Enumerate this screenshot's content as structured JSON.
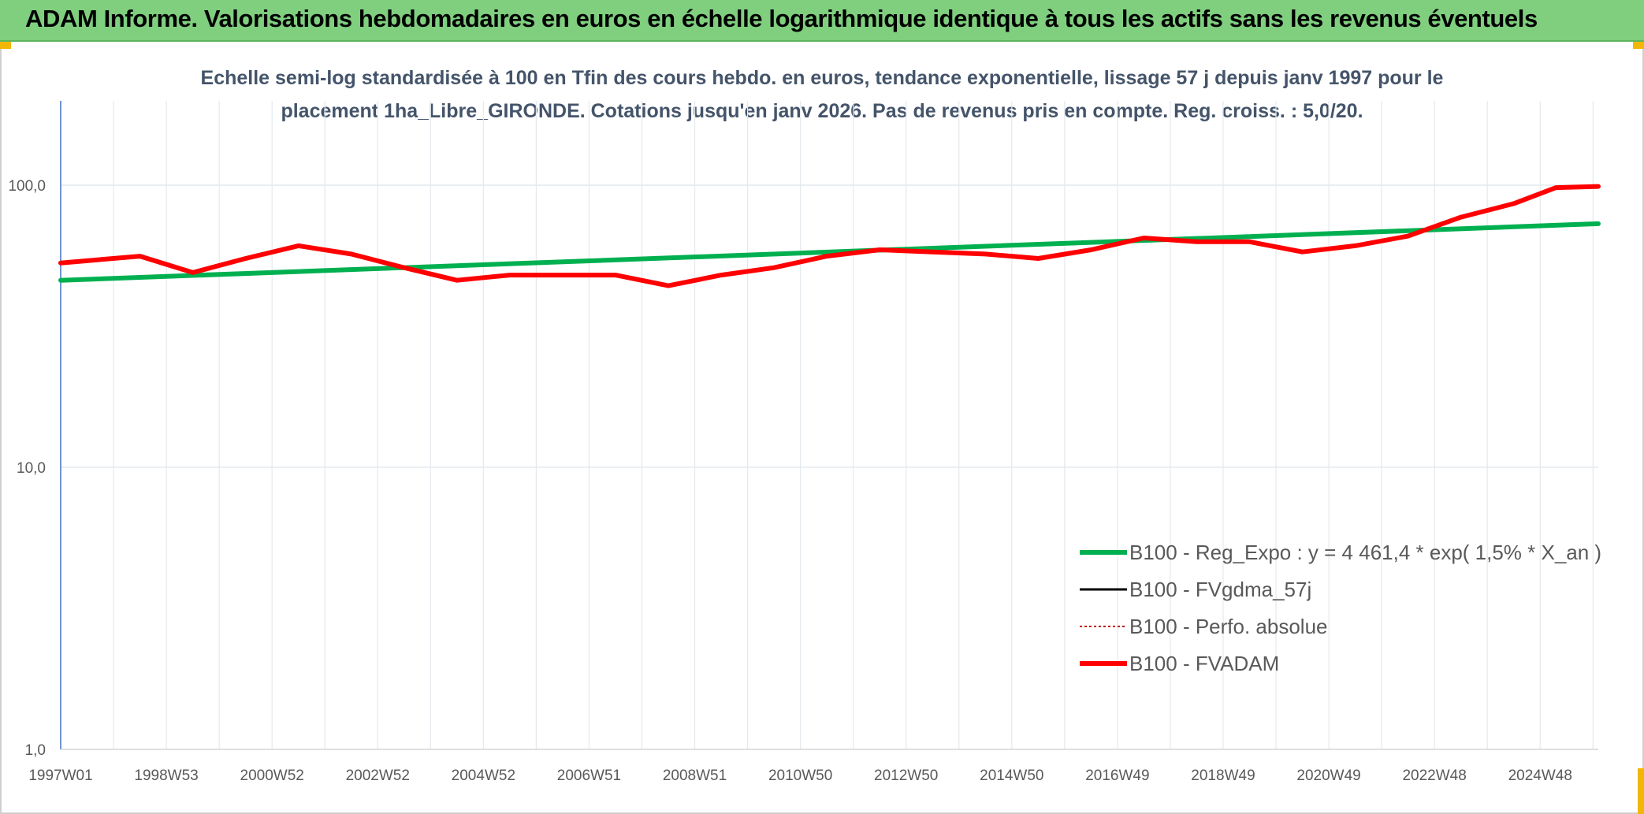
{
  "header": {
    "title": "ADAM Informe. Valorisations hebdomadaires en euros en échelle logarithmique identique à tous les actifs sans les revenus éventuels"
  },
  "colors": {
    "header_bg": "#7fcf7f",
    "accent_corner": "#f2b705",
    "reg_expo": "#00b050",
    "fvgdma": "#000000",
    "perfo": "#c00000",
    "fvadam": "#ff0000",
    "subtitle": "#44546a"
  },
  "chart_data": {
    "type": "line",
    "title_lines": [
      "Echelle semi-log standardisée à 100 en Tfin des cours hebdo. en euros, tendance exponentielle, lissage 57 j depuis janv 1997 pour le",
      "placement 1ha_Libre_GIRONDE. Cotations jusqu'en janv 2026. Pas de revenus pris en compte. Reg. croiss. : 5,0/20."
    ],
    "y_scale": "log",
    "ylim": [
      1,
      200
    ],
    "y_ticks": [
      {
        "value": 1,
        "label": "1,0"
      },
      {
        "value": 10,
        "label": "10,0"
      },
      {
        "value": 100,
        "label": "100,0"
      }
    ],
    "xlim": [
      1997.0,
      2026.1
    ],
    "x_ticks": [
      {
        "value": 1997.0,
        "label": "1997W01"
      },
      {
        "value": 1999.0,
        "label": "1998W53"
      },
      {
        "value": 2001.0,
        "label": "2000W52"
      },
      {
        "value": 2003.0,
        "label": "2002W52"
      },
      {
        "value": 2005.0,
        "label": "2004W52"
      },
      {
        "value": 2007.0,
        "label": "2006W51"
      },
      {
        "value": 2009.0,
        "label": "2008W51"
      },
      {
        "value": 2011.0,
        "label": "2010W50"
      },
      {
        "value": 2013.0,
        "label": "2012W50"
      },
      {
        "value": 2015.0,
        "label": "2014W50"
      },
      {
        "value": 2017.0,
        "label": "2016W49"
      },
      {
        "value": 2019.0,
        "label": "2018W49"
      },
      {
        "value": 2021.0,
        "label": "2020W49"
      },
      {
        "value": 2023.0,
        "label": "2022W48"
      },
      {
        "value": 2025.0,
        "label": "2024W48"
      }
    ],
    "grid": true,
    "legend_position": "lower-right",
    "series": [
      {
        "name": "B100 - Reg_Expo : y = 4 461,4 * exp( 1,5% *  X_an )",
        "color": "#00b050",
        "width": 6,
        "dash": "",
        "x": [
          1997.0,
          2026.1
        ],
        "y": [
          46,
          73
        ]
      },
      {
        "name": "B100 - FVgdma_57j",
        "color": "#000000",
        "width": 3,
        "dash": "",
        "x": [],
        "y": []
      },
      {
        "name": "B100 - Perfo. absolue",
        "color": "#c00000",
        "width": 2,
        "dash": "3,3",
        "x": [],
        "y": []
      },
      {
        "name": "B100 - FVADAM",
        "color": "#ff0000",
        "width": 6,
        "dash": "",
        "x": [
          1997.0,
          1998.5,
          1999.5,
          2000.5,
          2001.5,
          2002.5,
          2003.5,
          2004.5,
          2005.5,
          2006.5,
          2007.5,
          2008.5,
          2009.5,
          2010.5,
          2011.5,
          2012.5,
          2013.5,
          2014.5,
          2015.5,
          2016.5,
          2017.5,
          2018.5,
          2019.5,
          2020.5,
          2021.5,
          2022.5,
          2023.5,
          2024.5,
          2025.3,
          2026.1
        ],
        "y": [
          53,
          56,
          49,
          55,
          61,
          57,
          51,
          46,
          48,
          48,
          48,
          44,
          48,
          51,
          56,
          59,
          58,
          57,
          55,
          59,
          65,
          63,
          63,
          58,
          61,
          66,
          77,
          86,
          98,
          99
        ]
      }
    ]
  }
}
